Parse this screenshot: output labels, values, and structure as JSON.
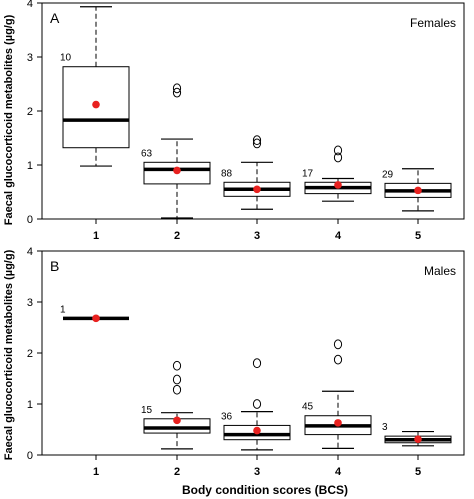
{
  "figure": {
    "shared_ylabel": "Faecal glucocorticoid metabolites (µg/g)",
    "shared_xlabel": "Body condition scores (BCS)"
  },
  "chart_data": [
    {
      "type": "box",
      "panel_label": "A",
      "title": "Females",
      "xlabel": "",
      "ylabel": "Faecal glucocorticoid metabolites (µg/g)",
      "categories": [
        "1",
        "2",
        "3",
        "4",
        "5"
      ],
      "ylim": [
        0,
        4
      ],
      "yticks": [
        0,
        1,
        2,
        3,
        4
      ],
      "grid": false,
      "boxes": [
        {
          "category": "1",
          "n": "10",
          "whisker_low": 0.98,
          "q1": 1.32,
          "median": 1.83,
          "q3": 2.82,
          "whisker_high": 3.93,
          "mean": 2.12,
          "outliers": []
        },
        {
          "category": "2",
          "n": "63",
          "whisker_low": 0.02,
          "q1": 0.65,
          "median": 0.92,
          "q3": 1.05,
          "whisker_high": 1.48,
          "mean": 0.9,
          "outliers": [
            2.34,
            2.42
          ]
        },
        {
          "category": "3",
          "n": "88",
          "whisker_low": 0.18,
          "q1": 0.42,
          "median": 0.55,
          "q3": 0.68,
          "whisker_high": 1.05,
          "mean": 0.55,
          "outliers": [
            1.4,
            1.46
          ]
        },
        {
          "category": "4",
          "n": "17",
          "whisker_low": 0.33,
          "q1": 0.47,
          "median": 0.58,
          "q3": 0.68,
          "whisker_high": 0.75,
          "mean": 0.63,
          "outliers": [
            1.14,
            1.27
          ]
        },
        {
          "category": "5",
          "n": "29",
          "whisker_low": 0.15,
          "q1": 0.4,
          "median": 0.52,
          "q3": 0.66,
          "whisker_high": 0.93,
          "mean": 0.53,
          "outliers": []
        }
      ],
      "colors": {
        "box": "#000000",
        "mean": "#e8211f"
      }
    },
    {
      "type": "box",
      "panel_label": "B",
      "title": "Males",
      "xlabel": "Body condition scores (BCS)",
      "ylabel": "Faecal glucocorticoid metabolites (µg/g)",
      "categories": [
        "1",
        "2",
        "3",
        "4",
        "5"
      ],
      "ylim": [
        0,
        4
      ],
      "yticks": [
        0,
        1,
        2,
        3,
        4
      ],
      "grid": false,
      "boxes": [
        {
          "category": "1",
          "n": "1",
          "whisker_low": 2.68,
          "q1": 2.68,
          "median": 2.68,
          "q3": 2.68,
          "whisker_high": 2.68,
          "mean": 2.68,
          "outliers": []
        },
        {
          "category": "2",
          "n": "15",
          "whisker_low": 0.12,
          "q1": 0.43,
          "median": 0.53,
          "q3": 0.71,
          "whisker_high": 0.83,
          "mean": 0.68,
          "outliers": [
            1.28,
            1.48,
            1.75
          ]
        },
        {
          "category": "3",
          "n": "36",
          "whisker_low": 0.1,
          "q1": 0.3,
          "median": 0.4,
          "q3": 0.58,
          "whisker_high": 0.85,
          "mean": 0.48,
          "outliers": [
            1.0,
            1.8
          ]
        },
        {
          "category": "4",
          "n": "45",
          "whisker_low": 0.13,
          "q1": 0.4,
          "median": 0.57,
          "q3": 0.77,
          "whisker_high": 1.25,
          "mean": 0.63,
          "outliers": [
            1.87,
            2.17
          ]
        },
        {
          "category": "5",
          "n": "3",
          "whisker_low": 0.18,
          "q1": 0.24,
          "median": 0.3,
          "q3": 0.37,
          "whisker_high": 0.46,
          "mean": 0.31,
          "outliers": []
        }
      ],
      "colors": {
        "box": "#000000",
        "mean": "#e8211f"
      }
    }
  ]
}
